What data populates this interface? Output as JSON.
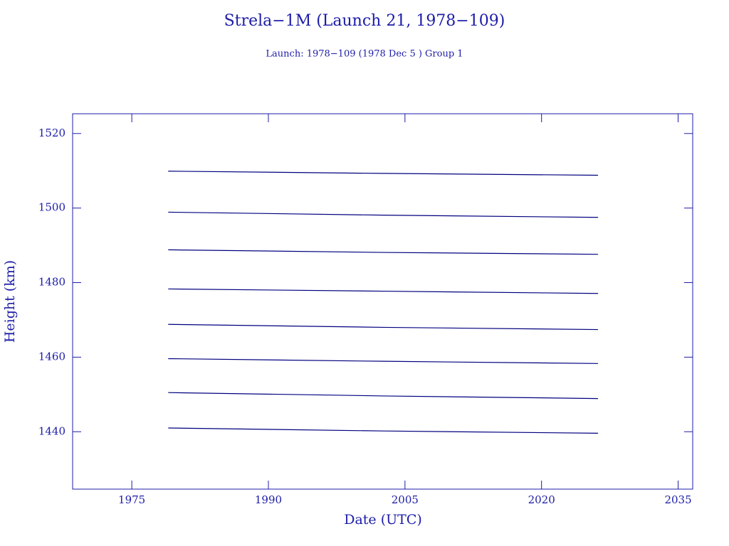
{
  "chart_data": {
    "type": "line",
    "title": "Strela−1M (Launch 21, 1978−109)",
    "subtitle": "Launch: 1978−109  (1978 Dec  5 )  Group 1",
    "x_label": "Date (UTC)",
    "y_label": "Height (km)",
    "x": [
      1979.0,
      2002.6,
      2026.2
    ],
    "series": [
      {
        "color": "#00007f",
        "values": [
          1509.9,
          1509.3,
          1508.8
        ]
      },
      {
        "color": "#00007f",
        "values": [
          1498.9,
          1498.1,
          1497.5
        ]
      },
      {
        "color": "#00007f",
        "values": [
          1488.8,
          1488.1,
          1487.6
        ]
      },
      {
        "color": "#00007f",
        "values": [
          1478.3,
          1477.7,
          1477.1
        ]
      },
      {
        "color": "#00007f",
        "values": [
          1468.8,
          1468.0,
          1467.4
        ]
      },
      {
        "color": "#00007f",
        "values": [
          1459.6,
          1458.9,
          1458.3
        ]
      },
      {
        "color": "#00007f",
        "values": [
          1450.5,
          1449.6,
          1448.9
        ]
      },
      {
        "color": "#00007f",
        "values": [
          1441.0,
          1440.2,
          1439.6
        ]
      }
    ],
    "xlim": [
      1968.5,
      2036.6
    ],
    "ylim": [
      1424.6,
      1525.3
    ],
    "xticks": [
      1975,
      1990,
      2005,
      2020,
      2035
    ],
    "yticks": [
      1440,
      1460,
      1480,
      1500,
      1520
    ]
  }
}
